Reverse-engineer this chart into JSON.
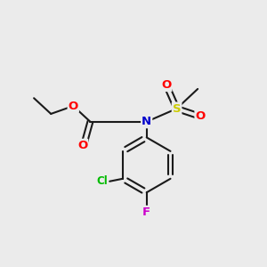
{
  "bg_color": "#ebebeb",
  "bond_color": "#1a1a1a",
  "bond_width": 1.5,
  "atom_colors": {
    "O": "#ff0000",
    "N": "#0000cc",
    "S": "#cccc00",
    "Cl": "#00bb00",
    "F": "#cc00cc",
    "C": "#1a1a1a"
  },
  "font_size": 9.5,
  "font_size_label": 8.5
}
